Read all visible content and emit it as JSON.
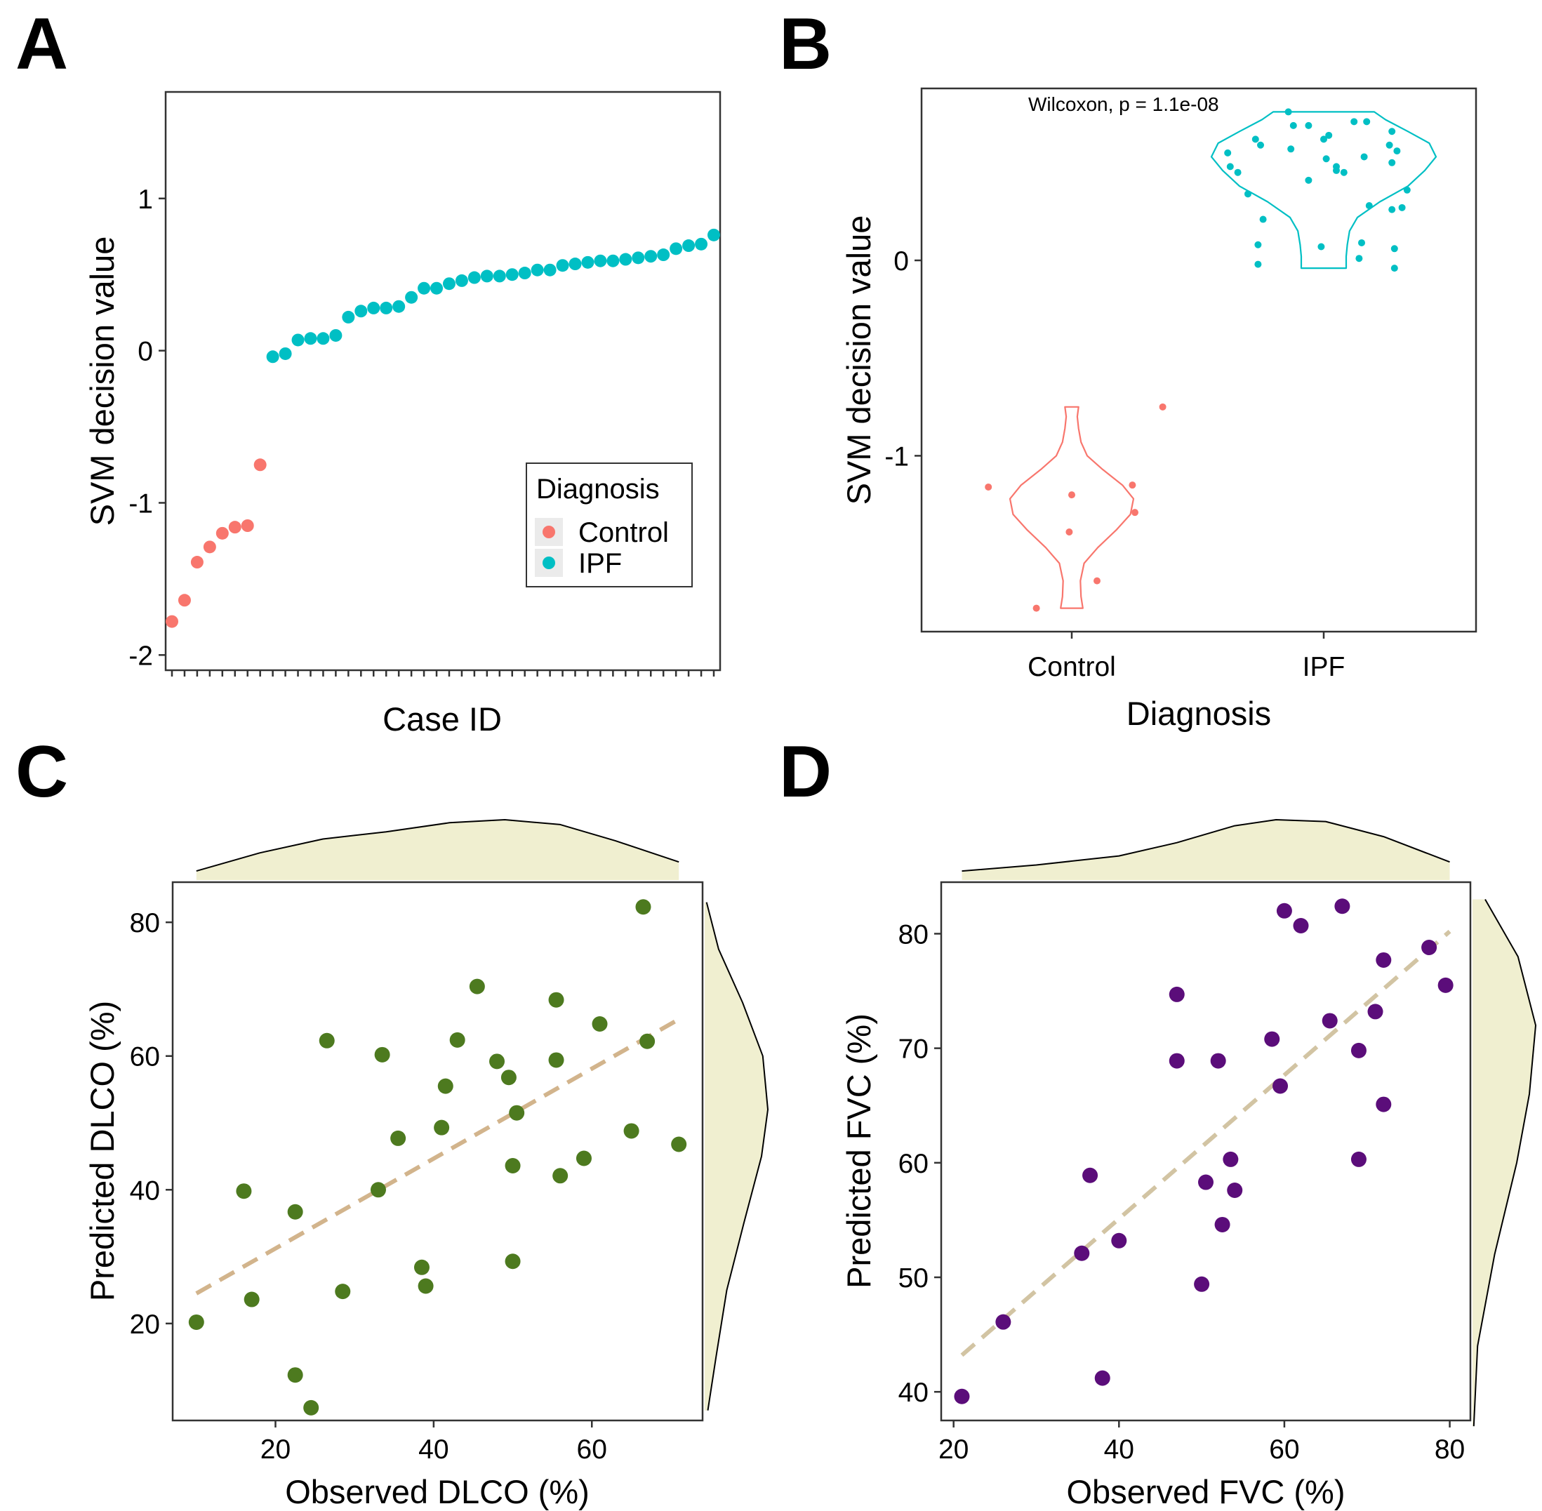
{
  "figure": {
    "panel_labels": [
      "A",
      "B",
      "C",
      "D"
    ]
  },
  "chart_data": [
    {
      "panel": "A",
      "type": "scatter",
      "title": "",
      "xlabel": "Case ID",
      "ylabel": "SVM decision value",
      "ylim": [
        -2.1,
        1.7
      ],
      "yticks": [
        -2,
        -1,
        0,
        1
      ],
      "ytick_labels": [
        "-2",
        "-1",
        "0",
        "1"
      ],
      "x_tick_count": 44,
      "legend": {
        "title": "Diagnosis",
        "position": "bottom-right",
        "entries": [
          {
            "label": "Control",
            "color": "#F8766D"
          },
          {
            "label": "IPF",
            "color": "#00BFC4"
          }
        ]
      },
      "series": [
        {
          "name": "Control",
          "color": "#F8766D",
          "x": [
            1,
            2,
            3,
            4,
            5,
            6,
            7,
            8
          ],
          "values": [
            -1.78,
            -1.64,
            -1.39,
            -1.29,
            -1.2,
            -1.16,
            -1.15,
            -0.75
          ]
        },
        {
          "name": "IPF",
          "color": "#00BFC4",
          "x": [
            9,
            10,
            11,
            12,
            13,
            14,
            15,
            16,
            17,
            18,
            19,
            20,
            21,
            22,
            23,
            24,
            25,
            26,
            27,
            28,
            29,
            30,
            31,
            32,
            33,
            34,
            35,
            36,
            37,
            38,
            39,
            40,
            41,
            42,
            43,
            44
          ],
          "values": [
            -0.04,
            -0.02,
            0.07,
            0.08,
            0.08,
            0.1,
            0.22,
            0.26,
            0.28,
            0.28,
            0.29,
            0.35,
            0.41,
            0.41,
            0.44,
            0.46,
            0.48,
            0.49,
            0.49,
            0.5,
            0.51,
            0.53,
            0.53,
            0.56,
            0.57,
            0.58,
            0.59,
            0.59,
            0.6,
            0.61,
            0.62,
            0.63,
            0.67,
            0.69,
            0.7,
            0.76
          ]
        }
      ]
    },
    {
      "panel": "B",
      "type": "violin",
      "title": "",
      "xlabel": "Diagnosis",
      "ylabel": "SVM decision value",
      "categories": [
        "Control",
        "IPF"
      ],
      "ylim": [
        -1.9,
        0.88
      ],
      "yticks": [
        -1,
        0
      ],
      "ytick_labels": [
        "-1",
        "0"
      ],
      "annotation": "Wilcoxon, p = 1.1e-08",
      "violins": [
        {
          "category": "Control",
          "color": "#F8766D",
          "range": [
            -1.78,
            -0.75
          ],
          "profile": [
            [
              -1.78,
              0.18
            ],
            [
              -1.72,
              0.15
            ],
            [
              -1.64,
              0.14
            ],
            [
              -1.55,
              0.2
            ],
            [
              -1.47,
              0.42
            ],
            [
              -1.38,
              0.72
            ],
            [
              -1.3,
              0.95
            ],
            [
              -1.22,
              1.0
            ],
            [
              -1.15,
              0.82
            ],
            [
              -1.07,
              0.5
            ],
            [
              -1.0,
              0.25
            ],
            [
              -0.93,
              0.15
            ],
            [
              -0.86,
              0.11
            ],
            [
              -0.8,
              0.09
            ],
            [
              -0.75,
              0.11
            ]
          ]
        },
        {
          "category": "IPF",
          "color": "#00BFC4",
          "range": [
            -0.04,
            0.76
          ],
          "profile": [
            [
              -0.04,
              0.2
            ],
            [
              0.02,
              0.2
            ],
            [
              0.08,
              0.21
            ],
            [
              0.15,
              0.23
            ],
            [
              0.22,
              0.3
            ],
            [
              0.3,
              0.5
            ],
            [
              0.38,
              0.75
            ],
            [
              0.46,
              0.9
            ],
            [
              0.53,
              1.0
            ],
            [
              0.6,
              0.94
            ],
            [
              0.66,
              0.75
            ],
            [
              0.72,
              0.55
            ],
            [
              0.76,
              0.45
            ]
          ]
        }
      ],
      "points": [
        {
          "category": "Control",
          "values": [
            -0.75,
            -1.16,
            -1.15,
            -1.2,
            -1.29,
            -1.39,
            -1.64,
            -1.78
          ],
          "jitter": [
            0.36,
            -0.33,
            0.24,
            0.0,
            0.25,
            -0.01,
            0.1,
            -0.14
          ]
        },
        {
          "category": "IPF",
          "values": [
            0.76,
            0.71,
            0.71,
            0.69,
            0.69,
            0.66,
            0.64,
            0.62,
            0.62,
            0.59,
            0.59,
            0.57,
            0.56,
            0.55,
            0.53,
            0.52,
            0.5,
            0.48,
            0.48,
            0.46,
            0.45,
            0.45,
            0.41,
            0.36,
            0.34,
            0.28,
            0.27,
            0.26,
            0.21,
            0.09,
            0.08,
            0.07,
            0.06,
            0.01,
            -0.02,
            -0.04
          ],
          "jitter": [
            -0.14,
            0.12,
            0.17,
            -0.12,
            -0.06,
            0.27,
            0.02,
            -0.27,
            0.0,
            -0.25,
            0.26,
            -0.13,
            0.29,
            -0.38,
            0.16,
            0.01,
            0.27,
            -0.37,
            0.05,
            0.05,
            -0.34,
            0.08,
            -0.06,
            0.33,
            -0.3,
            0.18,
            0.31,
            0.27,
            -0.24,
            0.15,
            -0.26,
            -0.01,
            0.28,
            0.14,
            -0.26,
            0.28
          ]
        }
      ]
    },
    {
      "panel": "C",
      "type": "scatter",
      "title": "",
      "xlabel": "Observed DLCO (%)",
      "ylabel": "Predicted DLCO (%)",
      "xlim": [
        7,
        74
      ],
      "ylim": [
        5.5,
        86
      ],
      "xticks": [
        20,
        40,
        60
      ],
      "xtick_labels": [
        "20",
        "40",
        "60"
      ],
      "yticks": [
        20,
        40,
        60,
        80
      ],
      "ytick_labels": [
        "20",
        "40",
        "60",
        "80"
      ],
      "color": "#4D7A1F",
      "marginal_fill": "#F0EFD0",
      "trend_line": {
        "color": "#D2B48C",
        "style": "dashed",
        "x": [
          10,
          71
        ],
        "y": [
          24.5,
          65.5
        ]
      },
      "x": [
        10,
        16,
        17,
        22.5,
        22.5,
        24.5,
        26.5,
        28.5,
        33,
        33.5,
        35.5,
        38.5,
        39,
        41,
        41.5,
        43,
        45.5,
        48,
        49.5,
        50,
        50,
        50.5,
        55.5,
        55.5,
        56,
        59,
        61,
        65,
        66.5,
        67,
        71
      ],
      "values": [
        20.2,
        39.8,
        23.6,
        36.7,
        12.3,
        7.4,
        62.3,
        24.8,
        40,
        60.2,
        47.7,
        28.4,
        25.6,
        49.3,
        55.5,
        62.4,
        70.4,
        59.2,
        56.8,
        43.6,
        29.3,
        51.5,
        68.4,
        59.4,
        42.1,
        44.7,
        64.8,
        48.8,
        82.3,
        62.2,
        46.8
      ],
      "marginal_x_density": [
        [
          10,
          0.15
        ],
        [
          18,
          0.45
        ],
        [
          26,
          0.68
        ],
        [
          34,
          0.8
        ],
        [
          42,
          0.95
        ],
        [
          49,
          1.0
        ],
        [
          56,
          0.92
        ],
        [
          63,
          0.65
        ],
        [
          71,
          0.3
        ]
      ],
      "marginal_y_density": [
        [
          7,
          0.05
        ],
        [
          15,
          0.18
        ],
        [
          25,
          0.35
        ],
        [
          35,
          0.62
        ],
        [
          45,
          0.9
        ],
        [
          52,
          1.0
        ],
        [
          60,
          0.92
        ],
        [
          68,
          0.6
        ],
        [
          76,
          0.22
        ],
        [
          83,
          0.03
        ]
      ]
    },
    {
      "panel": "D",
      "type": "scatter",
      "title": "",
      "xlabel": "Observed FVC (%)",
      "ylabel": "Predicted FVC (%)",
      "xlim": [
        18.5,
        82.5
      ],
      "ylim": [
        37.5,
        84.5
      ],
      "xticks": [
        20,
        40,
        60,
        80
      ],
      "xtick_labels": [
        "20",
        "40",
        "60",
        "80"
      ],
      "yticks": [
        40,
        50,
        60,
        70,
        80
      ],
      "ytick_labels": [
        "40",
        "50",
        "60",
        "70",
        "80"
      ],
      "color": "#5B0D7A",
      "marginal_fill": "#F0EFD0",
      "trend_line": {
        "color": "#D2C4A3",
        "style": "dashed",
        "x": [
          21,
          80
        ],
        "y": [
          43.2,
          80.2
        ]
      },
      "x": [
        21,
        26,
        35.5,
        36.5,
        38,
        40,
        47,
        47,
        50,
        50.5,
        52,
        52.5,
        53.5,
        54,
        58.5,
        59.5,
        60,
        62,
        65.5,
        67,
        69,
        69,
        71,
        72,
        72,
        77.5,
        79.5
      ],
      "values": [
        39.6,
        46.1,
        52.1,
        58.9,
        41.2,
        53.2,
        74.7,
        68.9,
        49.4,
        58.3,
        68.9,
        54.6,
        60.3,
        57.6,
        70.8,
        66.7,
        82,
        80.7,
        72.4,
        82.4,
        69.8,
        60.3,
        73.2,
        77.7,
        65.1,
        78.8,
        75.5
      ],
      "marginal_x_density": [
        [
          21,
          0.15
        ],
        [
          30,
          0.25
        ],
        [
          40,
          0.4
        ],
        [
          47,
          0.62
        ],
        [
          54,
          0.9
        ],
        [
          59,
          1.0
        ],
        [
          65,
          0.97
        ],
        [
          72,
          0.72
        ],
        [
          80,
          0.3
        ]
      ],
      "marginal_y_density": [
        [
          37,
          0.02
        ],
        [
          44,
          0.08
        ],
        [
          52,
          0.35
        ],
        [
          60,
          0.7
        ],
        [
          66,
          0.9
        ],
        [
          72,
          1.0
        ],
        [
          78,
          0.72
        ],
        [
          83,
          0.2
        ]
      ]
    }
  ]
}
